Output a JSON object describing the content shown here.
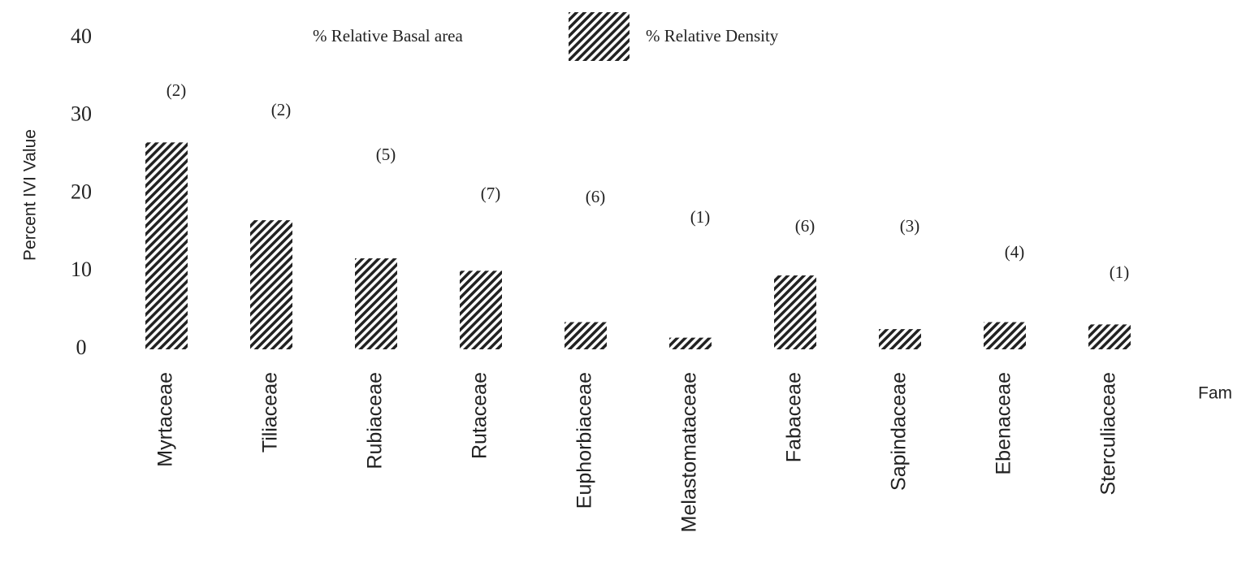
{
  "chart_data": {
    "type": "bar",
    "categories": [
      "Myrtaceae",
      "Tiliaceae",
      "Rubiaceae",
      "Rutaceae",
      "Euphorbiaceae",
      "Melastomataceae",
      "Fabaceae",
      "Sapindaceae",
      "Ebenaceae",
      "Sterculiaceae"
    ],
    "series": [
      {
        "name": "% Relative Basal area",
        "color": "#ffffff",
        "values": [
          null,
          null,
          null,
          null,
          null,
          null,
          null,
          null,
          null,
          null
        ]
      },
      {
        "name": "% Relative Density",
        "color": "hatch",
        "values": [
          26.6,
          16.6,
          11.7,
          10.1,
          3.5,
          1.5,
          9.5,
          2.6,
          3.5,
          3.2
        ]
      }
    ],
    "annotations": [
      "(2)",
      "(2)",
      "(5)",
      "(7)",
      "(6)",
      "(1)",
      "(6)",
      "(3)",
      "(4)",
      "(1)"
    ],
    "ylabel": "Percent IVI Value",
    "xlabel": "Family",
    "ylim": [
      0,
      40
    ],
    "yticks": [
      0,
      10,
      20,
      30,
      40
    ],
    "grid": false
  }
}
